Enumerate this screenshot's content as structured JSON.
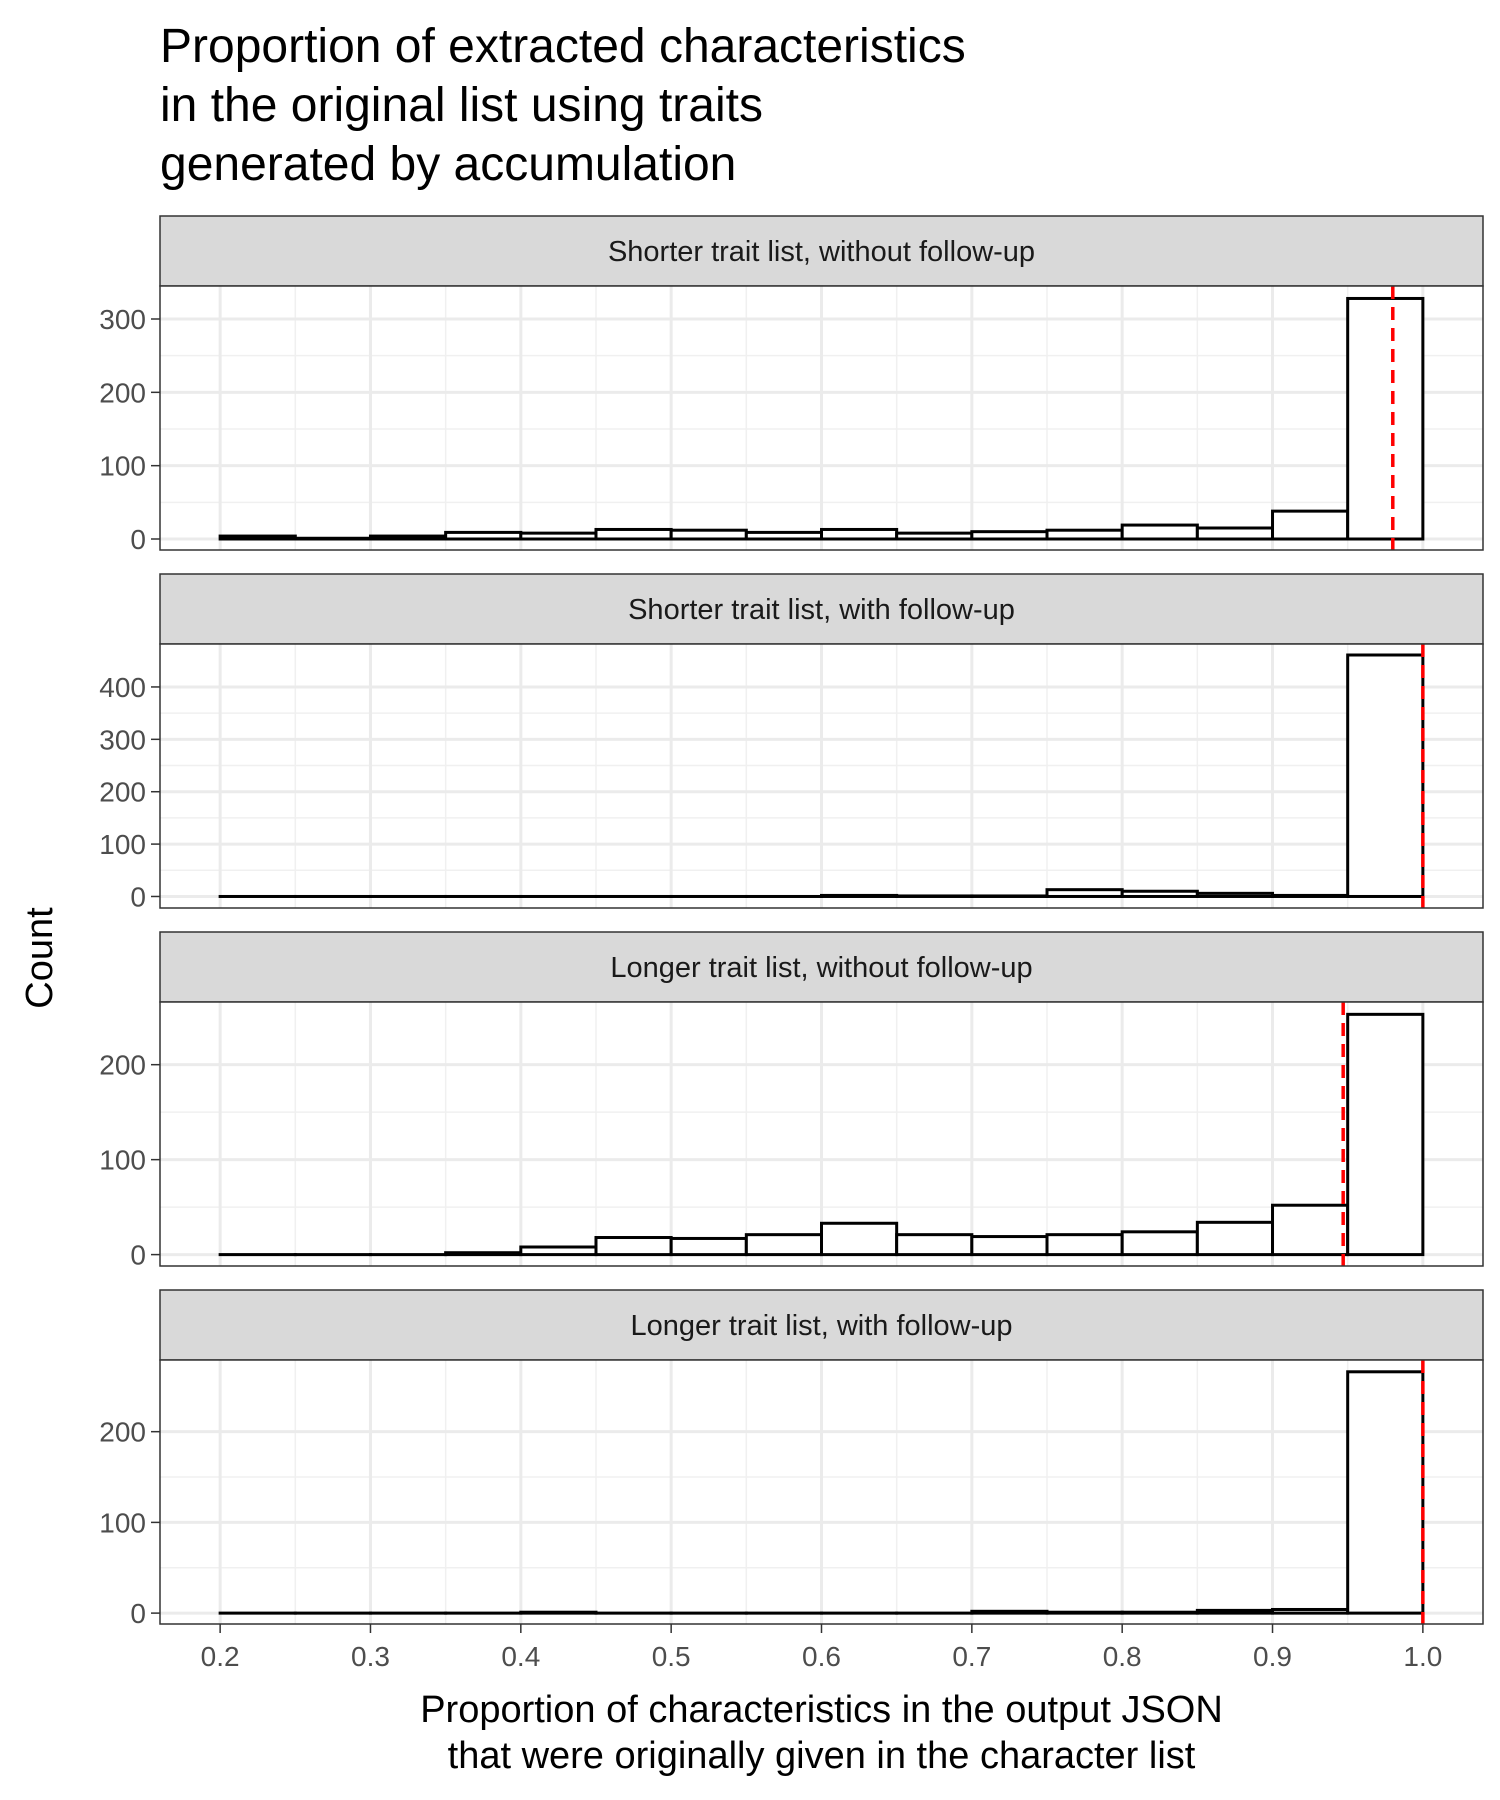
{
  "chart_data": {
    "type": "bar",
    "title": "Proportion of extracted characteristics\nin the original list using traits\ngenerated by accumulation",
    "xlabel": "Proportion of characteristics in the output JSON\nthat were originally given in the character list",
    "ylabel": "Count",
    "xlim": [
      0.16,
      1.04
    ],
    "x_ticks": [
      0.2,
      0.3,
      0.4,
      0.5,
      0.6,
      0.7,
      0.8,
      0.9,
      1.0
    ],
    "x_tick_labels": [
      "0.2",
      "0.3",
      "0.4",
      "0.5",
      "0.6",
      "0.7",
      "0.8",
      "0.9",
      "1.0"
    ],
    "bin_edges": [
      0.2,
      0.25,
      0.3,
      0.35,
      0.4,
      0.45,
      0.5,
      0.55,
      0.6,
      0.65,
      0.7,
      0.75,
      0.8,
      0.85,
      0.9,
      0.95,
      1.0
    ],
    "reference_line_color": "#ff0000",
    "bar_fill": "#ffffff",
    "bar_stroke": "#000000",
    "grid": true,
    "panels": [
      {
        "name": "Shorter trait list, without follow-up",
        "counts": [
          4,
          1,
          4,
          9,
          8,
          13,
          12,
          9,
          13,
          8,
          10,
          12,
          19,
          15,
          38,
          328
        ],
        "reference_x": 0.98,
        "ylim": [
          -15,
          345
        ],
        "y_ticks": [
          0,
          100,
          200,
          300
        ],
        "y_tick_labels": [
          "0",
          "100",
          "200",
          "300"
        ]
      },
      {
        "name": "Shorter trait list, with follow-up",
        "counts": [
          0,
          0,
          0,
          0,
          0,
          0,
          0,
          0,
          2,
          1,
          1,
          13,
          10,
          6,
          2,
          461
        ],
        "reference_x": 1.0,
        "ylim": [
          -22,
          482
        ],
        "y_ticks": [
          0,
          100,
          200,
          300,
          400
        ],
        "y_tick_labels": [
          "0",
          "100",
          "200",
          "300",
          "400"
        ]
      },
      {
        "name": "Longer trait list, without follow-up",
        "counts": [
          0,
          0,
          0,
          2,
          8,
          18,
          17,
          21,
          33,
          21,
          19,
          21,
          24,
          34,
          52,
          253
        ],
        "reference_x": 0.947,
        "ylim": [
          -12,
          266
        ],
        "y_ticks": [
          0,
          100,
          200
        ],
        "y_tick_labels": [
          "0",
          "100",
          "200"
        ]
      },
      {
        "name": "Longer trait list, with follow-up",
        "counts": [
          0,
          0,
          0,
          0,
          1,
          0,
          0,
          0,
          0,
          0,
          2,
          1,
          1,
          3,
          4,
          266
        ],
        "reference_x": 1.0,
        "ylim": [
          -12,
          279
        ],
        "y_ticks": [
          0,
          100,
          200
        ],
        "y_tick_labels": [
          "0",
          "100",
          "200"
        ]
      }
    ]
  }
}
